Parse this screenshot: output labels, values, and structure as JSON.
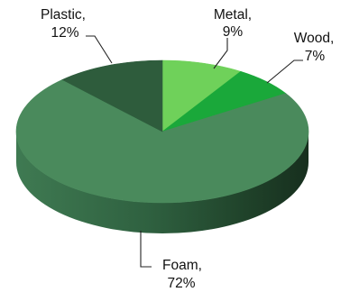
{
  "chart_data": {
    "type": "pie",
    "style": "3d",
    "slices": [
      {
        "label": "Metal",
        "value": 9,
        "value_text": "9%",
        "color": "#6fd15a",
        "side_color": "#4da23e"
      },
      {
        "label": "Wood",
        "value": 7,
        "value_text": "7%",
        "color": "#1aa83a",
        "side_color": "#137a2a"
      },
      {
        "label": "Foam",
        "value": 72,
        "value_text": "72%",
        "color": "#4a8a5c",
        "side_color": "#2c5a3b"
      },
      {
        "label": "Plastic",
        "value": 12,
        "value_text": "12%",
        "color": "#2e5c3c",
        "side_color": "#1c3a25"
      }
    ],
    "start_angle": "12 o'clock",
    "direction": "clockwise",
    "legend": "none",
    "labels": "outside with leader lines"
  }
}
